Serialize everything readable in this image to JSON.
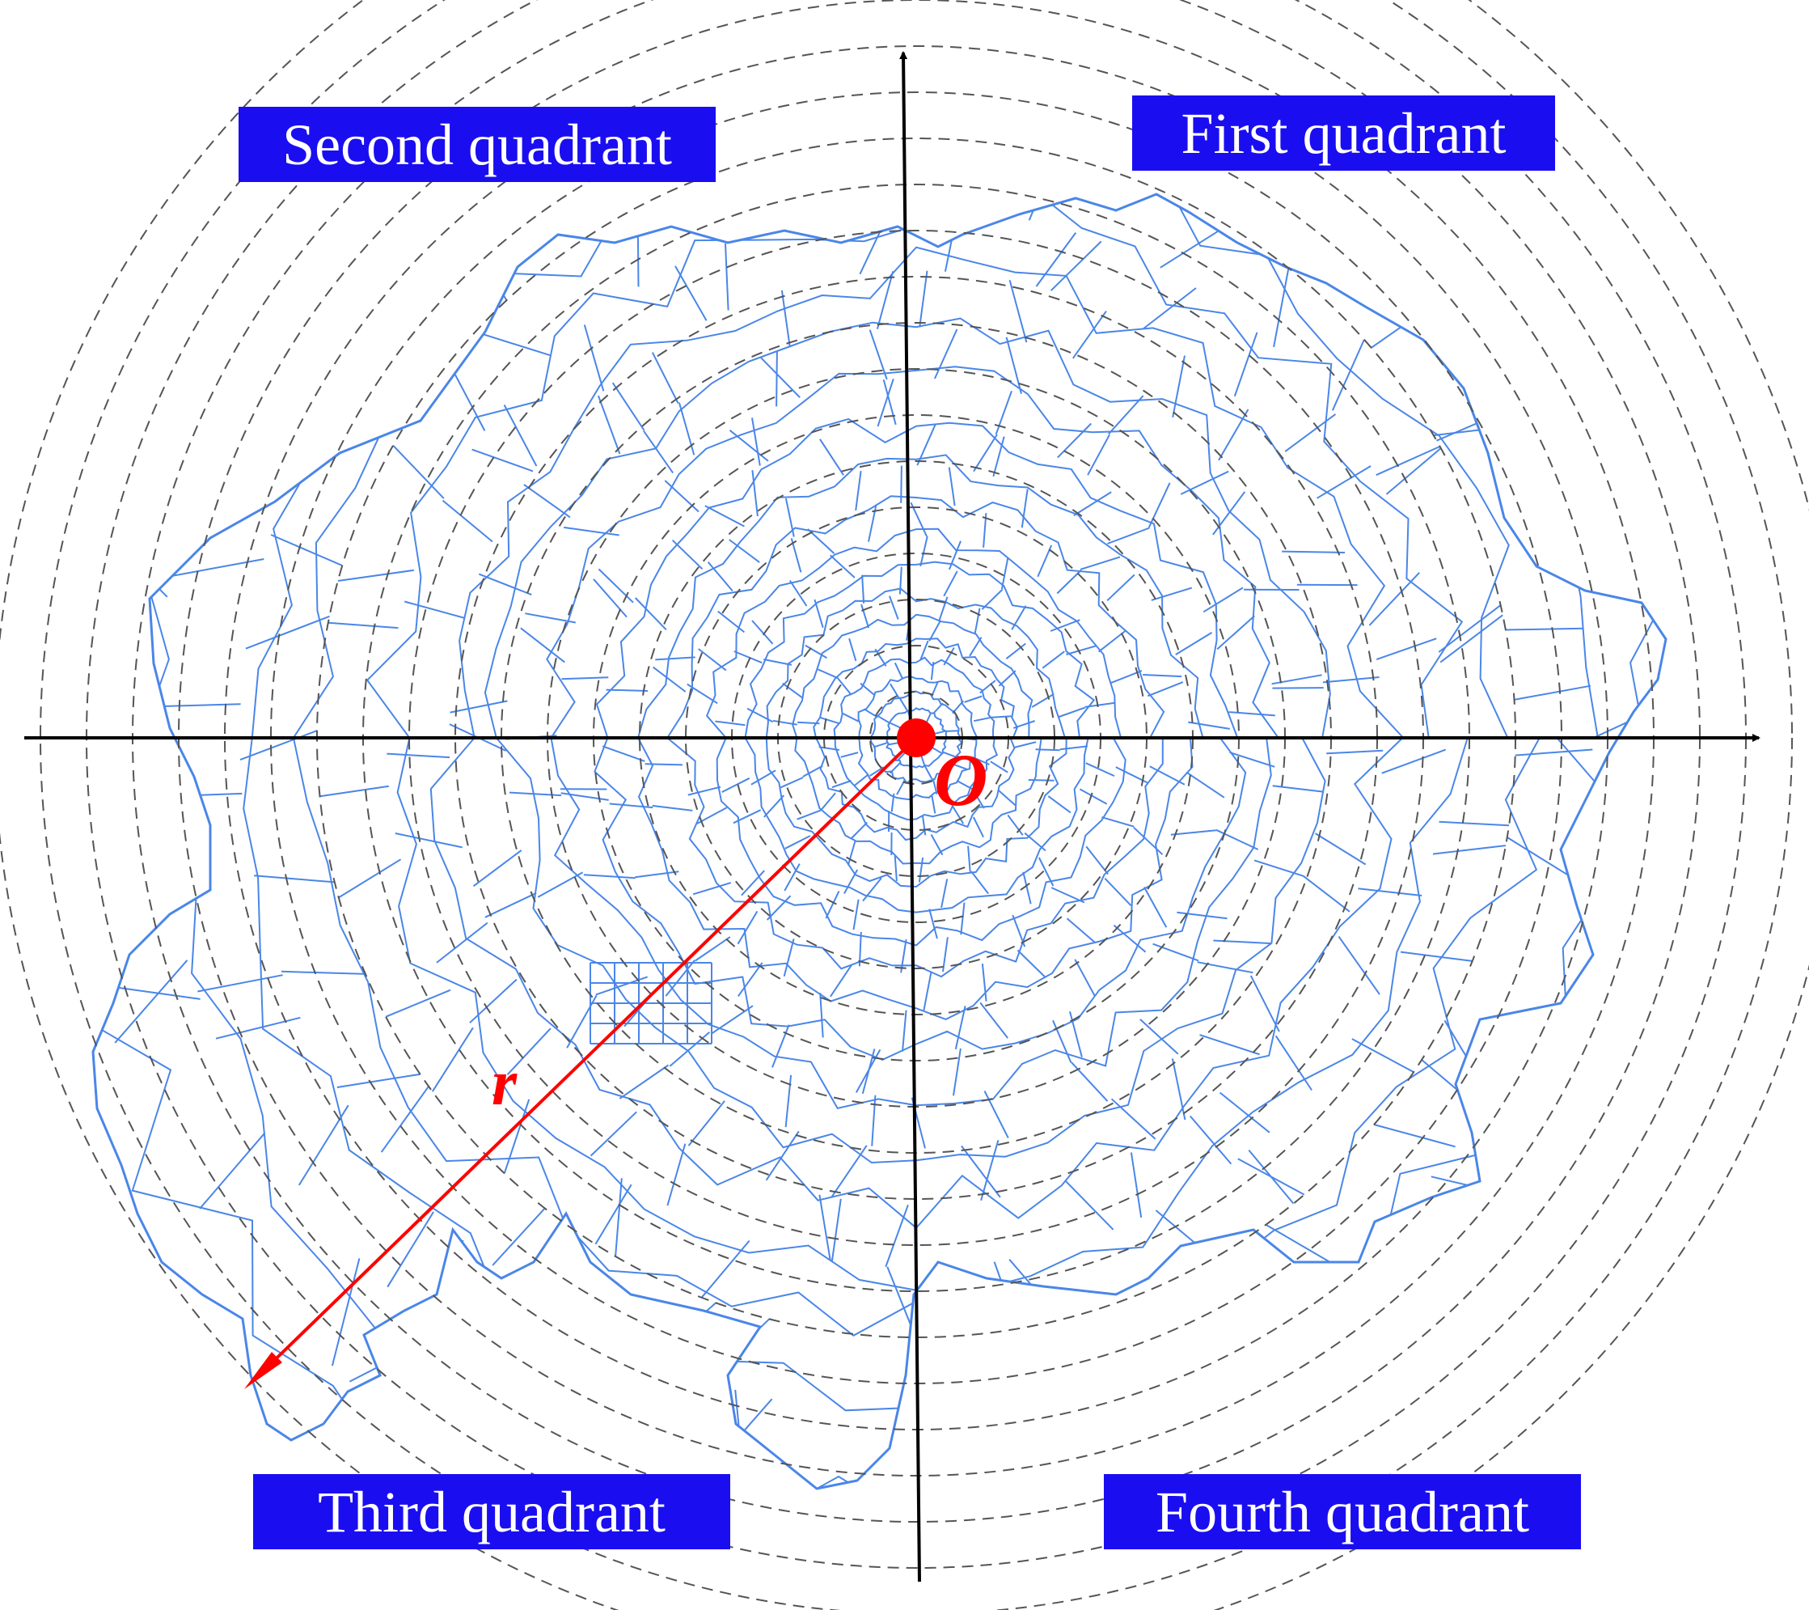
{
  "labels": {
    "second": "Second quadrant",
    "first": "First quadrant",
    "third": "Third quadrant",
    "fourth": "Fourth quadrant",
    "origin": "O",
    "radius": "r"
  },
  "colors": {
    "quadrant_label_bg": "#1a0ef0",
    "quadrant_label_text": "#ffffff",
    "boundaries": "#4a86e8",
    "rings": "#555555",
    "axes": "#000000",
    "annotation": "#ff0000"
  },
  "ring_count": 20
}
